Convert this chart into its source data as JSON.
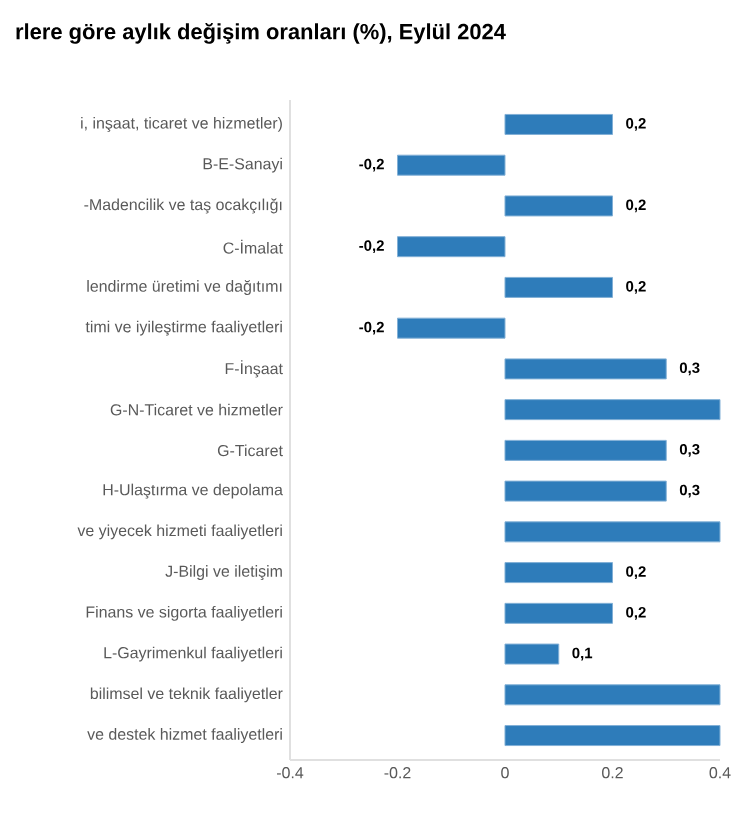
{
  "chart_data": {
    "type": "bar",
    "orientation": "horizontal",
    "title": "rlere göre aylık değişim oranları (%), Eylül 2024",
    "categories": [
      "i, inşaat, ticaret ve hizmetler)",
      "B-E-Sanayi",
      "-Madencilik ve taş ocakçılığı",
      "C-İmalat",
      "lendirme üretimi ve dağıtımı",
      "timi ve iyileştirme faaliyetleri",
      "F-İnşaat",
      "G-N-Ticaret ve hizmetler",
      "G-Ticaret",
      "H-Ulaştırma ve depolama",
      "ve yiyecek hizmeti faaliyetleri",
      "J-Bilgi ve iletişim",
      "Finans ve sigorta faaliyetleri",
      "L-Gayrimenkul faaliyetleri",
      "bilimsel ve teknik faaliyetler",
      "ve destek hizmet faaliyetleri"
    ],
    "values": [
      0.2,
      -0.2,
      0.2,
      -0.2,
      0.2,
      -0.2,
      0.3,
      0.4,
      0.3,
      0.3,
      0.4,
      0.2,
      0.2,
      0.1,
      0.4,
      0.4
    ],
    "value_labels": [
      "0,2",
      "-0,2",
      "0,2",
      "-0,2",
      "0,2",
      "-0,2",
      "0,3",
      null,
      "0,3",
      "0,3",
      null,
      "0,2",
      "0,2",
      "0,1",
      null,
      null
    ],
    "color": "#2e7cba",
    "xlim": [
      -0.4,
      0.4
    ],
    "xticks": [
      -0.4,
      -0.2,
      0,
      0.2,
      0.4
    ],
    "grid": false
  }
}
